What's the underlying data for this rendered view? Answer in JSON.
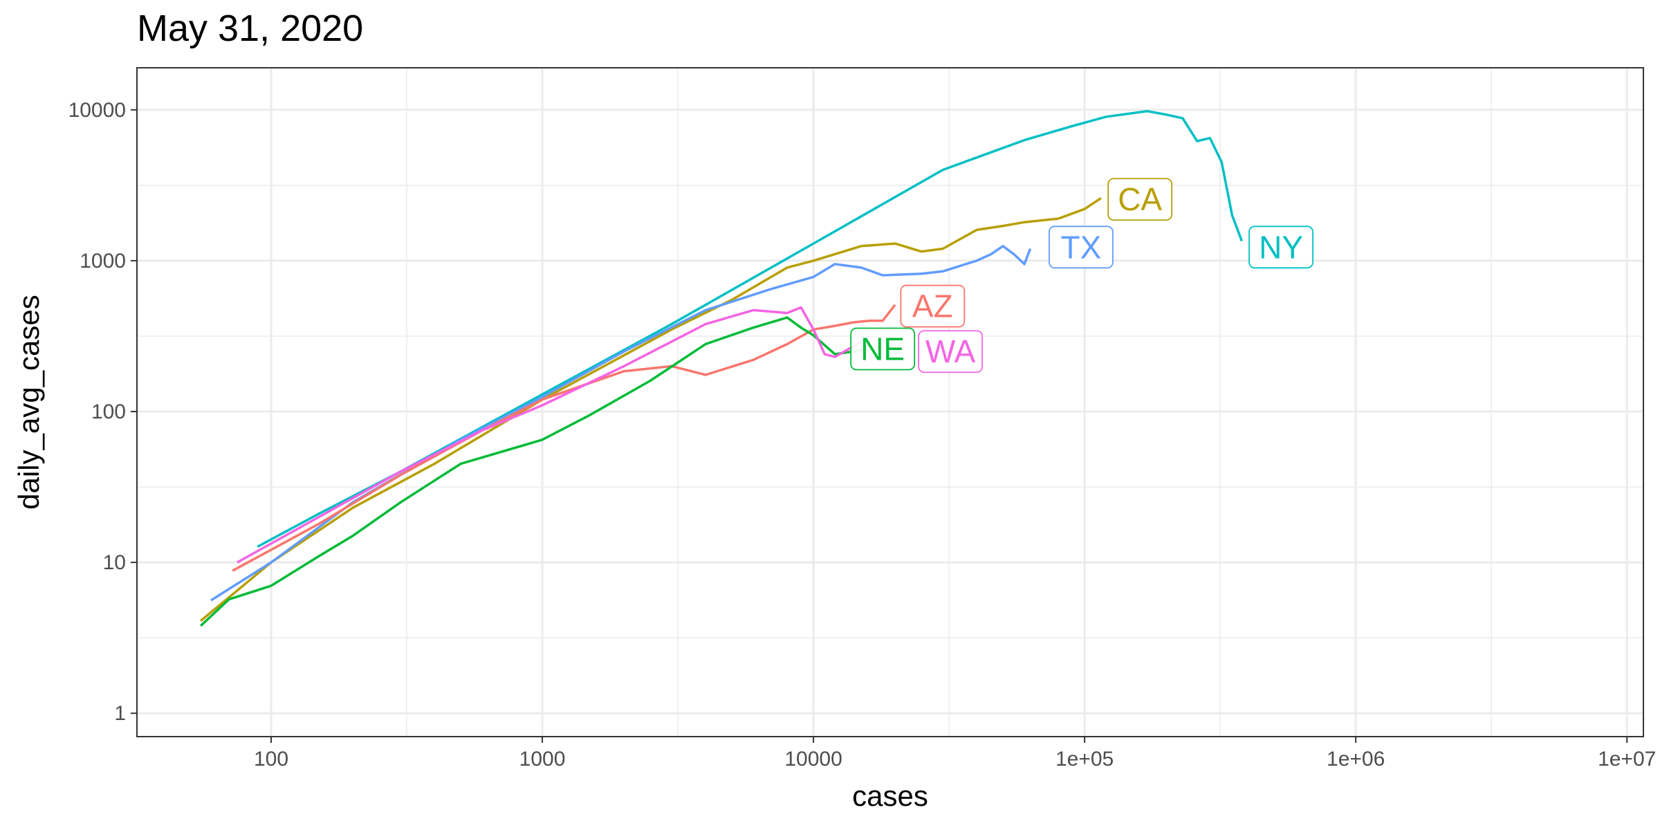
{
  "chart_data": {
    "type": "line",
    "title": "May 31, 2020",
    "xlabel": "cases",
    "ylabel": "daily_avg_cases",
    "x_scale": "log10",
    "y_scale": "log10",
    "xlim": [
      32,
      11500000
    ],
    "ylim": [
      0.7,
      19000
    ],
    "x_ticks": [
      {
        "value": 100,
        "label": "100"
      },
      {
        "value": 1000,
        "label": "1000"
      },
      {
        "value": 10000,
        "label": "10000"
      },
      {
        "value": 100000,
        "label": "1e+05"
      },
      {
        "value": 1000000,
        "label": "1e+06"
      },
      {
        "value": 10000000,
        "label": "1e+07"
      }
    ],
    "y_ticks": [
      {
        "value": 1,
        "label": "1"
      },
      {
        "value": 10,
        "label": "10"
      },
      {
        "value": 100,
        "label": "100"
      },
      {
        "value": 1000,
        "label": "1000"
      },
      {
        "value": 10000,
        "label": "10000"
      }
    ],
    "grid": true,
    "legend": "none (direct labels at line ends)",
    "series": [
      {
        "name": "NY",
        "color": "#00BFC4",
        "points": [
          [
            89,
            12.7
          ],
          [
            150,
            21
          ],
          [
            300,
            40
          ],
          [
            1000,
            130
          ],
          [
            3000,
            380
          ],
          [
            10000,
            1300
          ],
          [
            30000,
            4000
          ],
          [
            60000,
            6300
          ],
          [
            90000,
            7800
          ],
          [
            120000,
            9000
          ],
          [
            170000,
            9800
          ],
          [
            200000,
            9300
          ],
          [
            230000,
            8800
          ],
          [
            260000,
            6200
          ],
          [
            290000,
            6500
          ],
          [
            320000,
            4500
          ],
          [
            350000,
            2000
          ],
          [
            380000,
            1350
          ]
        ]
      },
      {
        "name": "CA",
        "color": "#B79F00",
        "points": [
          [
            55,
            4.1
          ],
          [
            100,
            10
          ],
          [
            200,
            23
          ],
          [
            400,
            45
          ],
          [
            1000,
            120
          ],
          [
            3000,
            350
          ],
          [
            5000,
            550
          ],
          [
            8000,
            900
          ],
          [
            10000,
            1000
          ],
          [
            15000,
            1250
          ],
          [
            20000,
            1300
          ],
          [
            25000,
            1150
          ],
          [
            30000,
            1200
          ],
          [
            40000,
            1600
          ],
          [
            50000,
            1700
          ],
          [
            60000,
            1800
          ],
          [
            80000,
            1900
          ],
          [
            100000,
            2200
          ],
          [
            115000,
            2600
          ]
        ]
      },
      {
        "name": "TX",
        "color": "#619CFF",
        "points": [
          [
            60,
            5.6
          ],
          [
            100,
            10
          ],
          [
            200,
            25
          ],
          [
            500,
            65
          ],
          [
            1000,
            125
          ],
          [
            2000,
            250
          ],
          [
            4000,
            470
          ],
          [
            7000,
            650
          ],
          [
            10000,
            780
          ],
          [
            12000,
            950
          ],
          [
            15000,
            900
          ],
          [
            18000,
            800
          ],
          [
            25000,
            820
          ],
          [
            30000,
            850
          ],
          [
            40000,
            1000
          ],
          [
            45000,
            1100
          ],
          [
            50000,
            1250
          ],
          [
            55000,
            1100
          ],
          [
            60000,
            950
          ],
          [
            63000,
            1200
          ]
        ]
      },
      {
        "name": "AZ",
        "color": "#F8766D",
        "points": [
          [
            72,
            8.8
          ],
          [
            150,
            18
          ],
          [
            300,
            38
          ],
          [
            600,
            75
          ],
          [
            1000,
            120
          ],
          [
            2000,
            185
          ],
          [
            3000,
            200
          ],
          [
            4000,
            175
          ],
          [
            6000,
            220
          ],
          [
            8000,
            280
          ],
          [
            10000,
            350
          ],
          [
            12000,
            370
          ],
          [
            14000,
            390
          ],
          [
            16000,
            400
          ],
          [
            18000,
            400
          ],
          [
            20000,
            510
          ]
        ]
      },
      {
        "name": "NE",
        "color": "#00BA38",
        "points": [
          [
            55,
            3.8
          ],
          [
            70,
            5.7
          ],
          [
            100,
            7
          ],
          [
            150,
            11
          ],
          [
            200,
            15
          ],
          [
            300,
            25
          ],
          [
            500,
            45
          ],
          [
            1000,
            65
          ],
          [
            1500,
            95
          ],
          [
            2500,
            160
          ],
          [
            4000,
            280
          ],
          [
            6000,
            360
          ],
          [
            8000,
            420
          ],
          [
            9000,
            360
          ],
          [
            10000,
            320
          ],
          [
            12000,
            240
          ],
          [
            14000,
            250
          ],
          [
            16000,
            260
          ]
        ]
      },
      {
        "name": "WA",
        "color": "#F564E3",
        "points": [
          [
            75,
            10
          ],
          [
            150,
            20
          ],
          [
            300,
            40
          ],
          [
            600,
            75
          ],
          [
            1000,
            110
          ],
          [
            2000,
            200
          ],
          [
            4000,
            380
          ],
          [
            6000,
            470
          ],
          [
            8000,
            450
          ],
          [
            9000,
            490
          ],
          [
            10000,
            350
          ],
          [
            11000,
            240
          ],
          [
            12000,
            230
          ],
          [
            14000,
            270
          ],
          [
            16000,
            310
          ]
        ]
      }
    ],
    "labels": [
      {
        "series": "CA",
        "text": "CA",
        "x": 160000,
        "y": 2550
      },
      {
        "series": "TX",
        "text": "TX",
        "x": 97000,
        "y": 1230
      },
      {
        "series": "NY",
        "text": "NY",
        "x": 530000,
        "y": 1230
      },
      {
        "series": "AZ",
        "text": "AZ",
        "x": 27500,
        "y": 500
      },
      {
        "series": "NE",
        "text": "NE",
        "x": 18000,
        "y": 260
      },
      {
        "series": "WA",
        "text": "WA",
        "x": 32000,
        "y": 250
      }
    ]
  }
}
